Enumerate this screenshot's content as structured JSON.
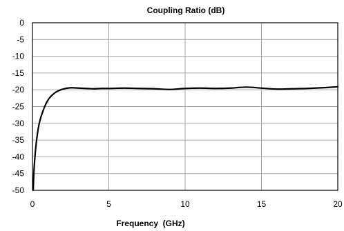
{
  "chart_data": {
    "type": "line",
    "title": "Coupling Ratio (dB)",
    "xlabel": "Frequency  (GHz)",
    "ylabel": "",
    "xlim": [
      0,
      20
    ],
    "ylim": [
      -50,
      0
    ],
    "xticks": [
      0,
      5,
      10,
      15,
      20
    ],
    "yticks": [
      0,
      -5,
      -10,
      -15,
      -20,
      -25,
      -30,
      -35,
      -40,
      -45,
      -50
    ],
    "grid": true,
    "legend": "none",
    "series": [
      {
        "color": "#000000",
        "x": [
          0.05,
          0.1,
          0.2,
          0.3,
          0.4,
          0.5,
          0.6,
          0.8,
          1.0,
          1.2,
          1.5,
          1.8,
          2.0,
          2.3,
          2.6,
          3.0,
          3.5,
          4.0,
          4.5,
          5.0,
          6.0,
          7.0,
          8.0,
          9.0,
          10.0,
          11.0,
          12.0,
          13.0,
          14.0,
          15.0,
          16.0,
          17.0,
          18.0,
          19.0,
          20.0
        ],
        "y": [
          -50,
          -44,
          -38,
          -34,
          -31,
          -29,
          -27.5,
          -25,
          -23.2,
          -22,
          -20.8,
          -20.1,
          -19.8,
          -19.5,
          -19.4,
          -19.5,
          -19.6,
          -19.7,
          -19.6,
          -19.6,
          -19.5,
          -19.6,
          -19.7,
          -19.9,
          -19.6,
          -19.5,
          -19.6,
          -19.5,
          -19.2,
          -19.5,
          -19.8,
          -19.7,
          -19.6,
          -19.4,
          -19.1
        ]
      }
    ]
  }
}
